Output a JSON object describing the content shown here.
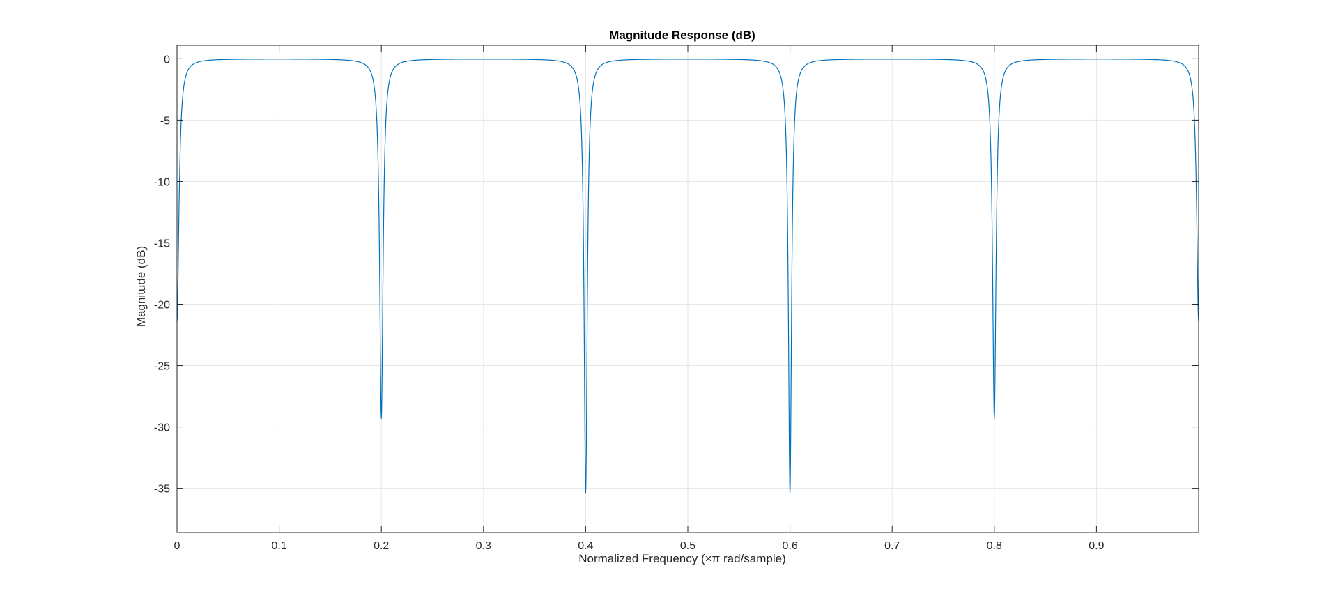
{
  "chart_data": {
    "type": "line",
    "title": "Magnitude Response (dB)",
    "xlabel": "Normalized Frequency (×π rad/sample)",
    "ylabel": "Magnitude (dB)",
    "xlim": [
      0,
      1
    ],
    "ylim": [
      -38.6,
      1.1
    ],
    "grid": true,
    "legend": "none",
    "xticks": [
      0,
      0.1,
      0.2,
      0.3,
      0.4,
      0.5,
      0.6,
      0.7,
      0.8,
      0.9
    ],
    "xtick_labels": [
      "0",
      "0.1",
      "0.2",
      "0.3",
      "0.4",
      "0.5",
      "0.6",
      "0.7",
      "0.8",
      "0.9"
    ],
    "yticks": [
      0,
      -5,
      -10,
      -15,
      -20,
      -25,
      -30,
      -35
    ],
    "ytick_labels": [
      "0",
      "-5",
      "-10",
      "-15",
      "-20",
      "-25",
      "-30",
      "-35"
    ],
    "series": [
      {
        "color": "#0072BD",
        "notches": [
          {
            "x": 0.0,
            "y": -21.4
          },
          {
            "x": 0.2,
            "y": -29.3
          },
          {
            "x": 0.4,
            "y": -35.4
          },
          {
            "x": 0.6,
            "y": -35.4
          },
          {
            "x": 0.8,
            "y": -29.3
          },
          {
            "x": 1.0,
            "y": -21.4
          }
        ],
        "passband_level": 0
      }
    ]
  },
  "colors": {
    "line": "#0072BD",
    "axes": "#262626",
    "grid": "#e6e6e6",
    "background": "#ffffff"
  }
}
